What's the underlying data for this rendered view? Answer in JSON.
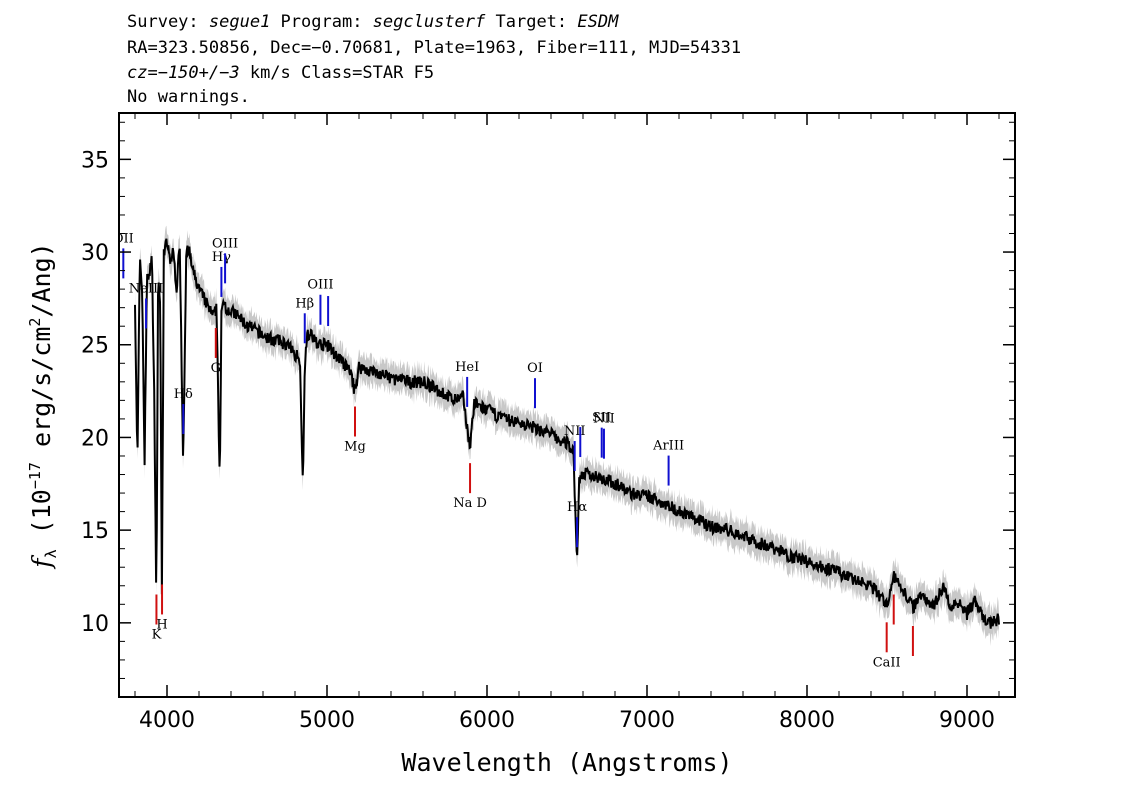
{
  "header": {
    "line1": {
      "survey_label": "Survey: ",
      "survey": "segue1",
      "program_label": " Program: ",
      "program": "segclusterf",
      "target_label": " Target: ",
      "target": "ESDM"
    },
    "line2": "RA=323.50856, Dec=−0.70681, Plate=1963, Fiber=111, MJD=54331",
    "line3": {
      "cz": "cz=−150+/−3",
      "rest": " km/s Class=STAR F5"
    },
    "line4": "No warnings."
  },
  "chart_data": {
    "type": "line",
    "xlabel": "Wavelength (Angstroms)",
    "ylabel": "f_λ (10⁻¹⁷ erg/s/cm²/Ang)",
    "xlim": [
      3700,
      9300
    ],
    "ylim": [
      6,
      37.5
    ],
    "xticks": [
      "4000",
      "5000",
      "6000",
      "7000",
      "8000",
      "9000"
    ],
    "yticks": [
      "10",
      "15",
      "20",
      "25",
      "30",
      "35"
    ],
    "colors": {
      "spectrum": "#000000",
      "error": "#c8c8c8",
      "emission": "#1010d0",
      "absorption": "#d01010"
    },
    "series": [
      {
        "x": [
          3800,
          3815,
          3830,
          3845,
          3860,
          3875,
          3890,
          3905,
          3920,
          3933,
          3945,
          3958,
          3968,
          3980,
          4000,
          4020,
          4040,
          4060,
          4080,
          4101,
          4120,
          4140,
          4160,
          4180,
          4200,
          4230,
          4260,
          4290,
          4310,
          4330,
          4340,
          4355,
          4370,
          4400,
          4450,
          4500,
          4550,
          4600,
          4650,
          4700,
          4750,
          4800,
          4830,
          4850,
          4861,
          4875,
          4900,
          4950,
          5000,
          5050,
          5100,
          5150,
          5172,
          5200,
          5300,
          5400,
          5500,
          5577,
          5600,
          5700,
          5800,
          5850,
          5893,
          5920,
          6000,
          6100,
          6200,
          6300,
          6400,
          6450,
          6500,
          6540,
          6563,
          6575,
          6600,
          6700,
          6800,
          6900,
          7000,
          7100,
          7200,
          7250,
          7300,
          7400,
          7500,
          7600,
          7700,
          7800,
          7900,
          8000,
          8100,
          8200,
          8300,
          8400,
          8498,
          8542,
          8600,
          8662,
          8700,
          8800,
          8850,
          8900,
          8950,
          9000,
          9050,
          9100,
          9150,
          9200
        ],
        "y": [
          27.5,
          18.5,
          29.5,
          28,
          18.5,
          29,
          28.5,
          30,
          22.5,
          11,
          29,
          27,
          11.5,
          30,
          30.5,
          29.5,
          30,
          28,
          30.5,
          18.5,
          30,
          30,
          29,
          28.5,
          28,
          27.5,
          27,
          26.5,
          27,
          17.5,
          26.5,
          27.5,
          27,
          26.8,
          26.5,
          26,
          25.8,
          25.5,
          25.3,
          25.2,
          25,
          24.5,
          24.3,
          17.5,
          24,
          25.5,
          25.5,
          25,
          25,
          24.5,
          24,
          23.5,
          22.5,
          23.8,
          23.5,
          23.2,
          23,
          23,
          23,
          22.5,
          22,
          22.2,
          19.5,
          21.8,
          21.5,
          21,
          20.8,
          20.5,
          20.2,
          19.8,
          19.7,
          19.3,
          13,
          17.8,
          18,
          17.9,
          17.5,
          17,
          16.8,
          16.5,
          16,
          15.9,
          15.6,
          15.2,
          15,
          14.7,
          14.3,
          14,
          13.6,
          13.3,
          13,
          12.7,
          12.3,
          12,
          11,
          12.5,
          11.8,
          10.8,
          11.5,
          11,
          12,
          10.8,
          11.2,
          10.5,
          11.2,
          10.2,
          10,
          10.2
        ]
      }
    ],
    "lines": [
      {
        "label": "OII",
        "wl": 3727,
        "kind": "emission"
      },
      {
        "label": "NeIII",
        "wl": 3869,
        "kind": "emission"
      },
      {
        "label": "Hδ",
        "wl": 4102,
        "kind": "emission"
      },
      {
        "label": "Hγ",
        "wl": 4340,
        "kind": "emission"
      },
      {
        "label": "OIII",
        "wl": 4363,
        "kind": "emission"
      },
      {
        "label": "Hβ",
        "wl": 4861,
        "kind": "emission"
      },
      {
        "label": "OIII",
        "wl": 4959,
        "kind": "emission"
      },
      {
        "label": "",
        "wl": 5007,
        "kind": "emission"
      },
      {
        "label": "HeI",
        "wl": 5876,
        "kind": "emission"
      },
      {
        "label": "OI",
        "wl": 6300,
        "kind": "emission"
      },
      {
        "label": "NII",
        "wl": 6548,
        "kind": "emission"
      },
      {
        "label": "Hα",
        "wl": 6563,
        "kind": "emission"
      },
      {
        "label": "",
        "wl": 6583,
        "kind": "emission"
      },
      {
        "label": "SII",
        "wl": 6717,
        "kind": "emission"
      },
      {
        "label": "NII",
        "wl": 6731,
        "kind": "emission"
      },
      {
        "label": "ArIII",
        "wl": 7135,
        "kind": "emission"
      },
      {
        "label": "K",
        "wl": 3934,
        "kind": "absorption"
      },
      {
        "label": "H",
        "wl": 3969,
        "kind": "absorption"
      },
      {
        "label": "G",
        "wl": 4305,
        "kind": "absorption"
      },
      {
        "label": "Mg",
        "wl": 5175,
        "kind": "absorption"
      },
      {
        "label": "Na D",
        "wl": 5894,
        "kind": "absorption"
      },
      {
        "label": "CaII",
        "wl": 8498,
        "kind": "absorption"
      },
      {
        "label": "",
        "wl": 8542,
        "kind": "absorption"
      },
      {
        "label": "",
        "wl": 8662,
        "kind": "absorption"
      }
    ]
  }
}
